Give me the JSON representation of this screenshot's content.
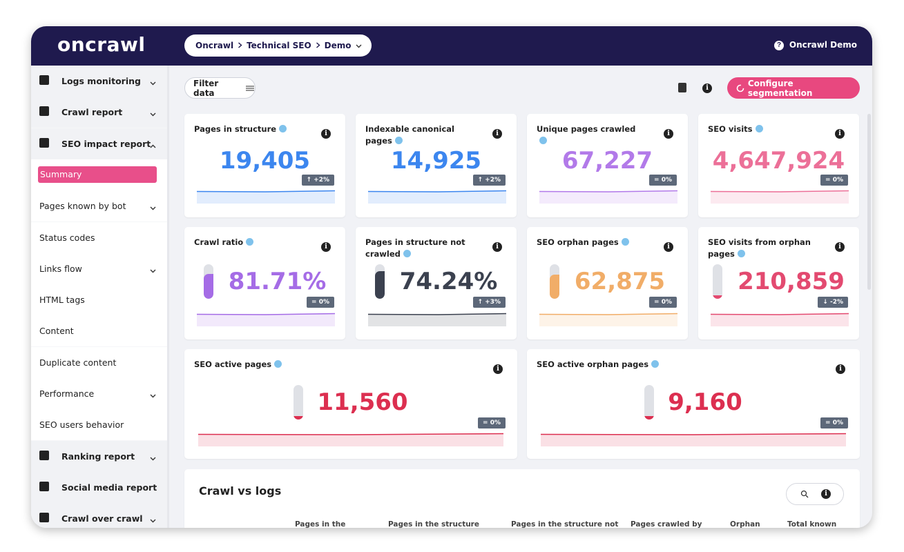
{
  "header": {
    "brand": "oncrawl",
    "breadcrumb": [
      "Oncrawl",
      "Technical SEO",
      "Demo"
    ],
    "user": "Oncrawl Demo"
  },
  "sidebar": [
    {
      "label": "Logs monitoring",
      "kind": "section",
      "chevron": "down"
    },
    {
      "label": "Crawl report",
      "kind": "section",
      "chevron": "down"
    },
    {
      "label": "SEO impact report",
      "kind": "section",
      "chevron": "up"
    },
    {
      "label": "Summary",
      "kind": "active"
    },
    {
      "label": "Pages known by bot",
      "kind": "sub",
      "chevron": "down"
    },
    {
      "label": "Status codes",
      "kind": "sub"
    },
    {
      "label": "Links flow",
      "kind": "sub",
      "chevron": "down"
    },
    {
      "label": "HTML tags",
      "kind": "sub"
    },
    {
      "label": "Content",
      "kind": "sub"
    },
    {
      "label": "Duplicate content",
      "kind": "sub"
    },
    {
      "label": "Performance",
      "kind": "sub",
      "chevron": "down"
    },
    {
      "label": "SEO users behavior",
      "kind": "sub"
    },
    {
      "label": "Ranking report",
      "kind": "section",
      "chevron": "down"
    },
    {
      "label": "Social media report",
      "kind": "section"
    },
    {
      "label": "Crawl over crawl",
      "kind": "section",
      "chevron": "down"
    }
  ],
  "toolbar": {
    "filter": "Filter data",
    "configure": "Configure segmentation"
  },
  "cards": [
    {
      "title": "Pages in structure",
      "value": "19,405",
      "badge": "↑ +2%"
    },
    {
      "title": "Indexable canonical pages",
      "value": "14,925",
      "badge": "↑ +2%"
    },
    {
      "title": "Unique pages crawled",
      "value": "67,227",
      "badge": "= 0%"
    },
    {
      "title": "SEO visits",
      "value": "4,647,924",
      "badge": "= 0%"
    },
    {
      "title": "Crawl ratio",
      "value": "81.71%",
      "badge": "= 0%"
    },
    {
      "title": "Pages in structure not crawled",
      "value": "74.24%",
      "badge": "↑ +3%"
    },
    {
      "title": "SEO orphan pages",
      "value": "62,875",
      "badge": "= 0%"
    },
    {
      "title": "SEO visits from orphan pages",
      "value": "210,859",
      "badge": "↓ -2%"
    },
    {
      "title": "SEO active pages",
      "value": "11,560",
      "badge": "= 0%"
    },
    {
      "title": "SEO active orphan pages",
      "value": "9,160",
      "badge": "= 0%"
    }
  ],
  "table": {
    "title": "Crawl vs logs",
    "columns": [
      "Pages in the",
      "Pages in the structure",
      "Pages in the structure not",
      "Pages crawled by",
      "Orphan",
      "Total known"
    ]
  }
}
